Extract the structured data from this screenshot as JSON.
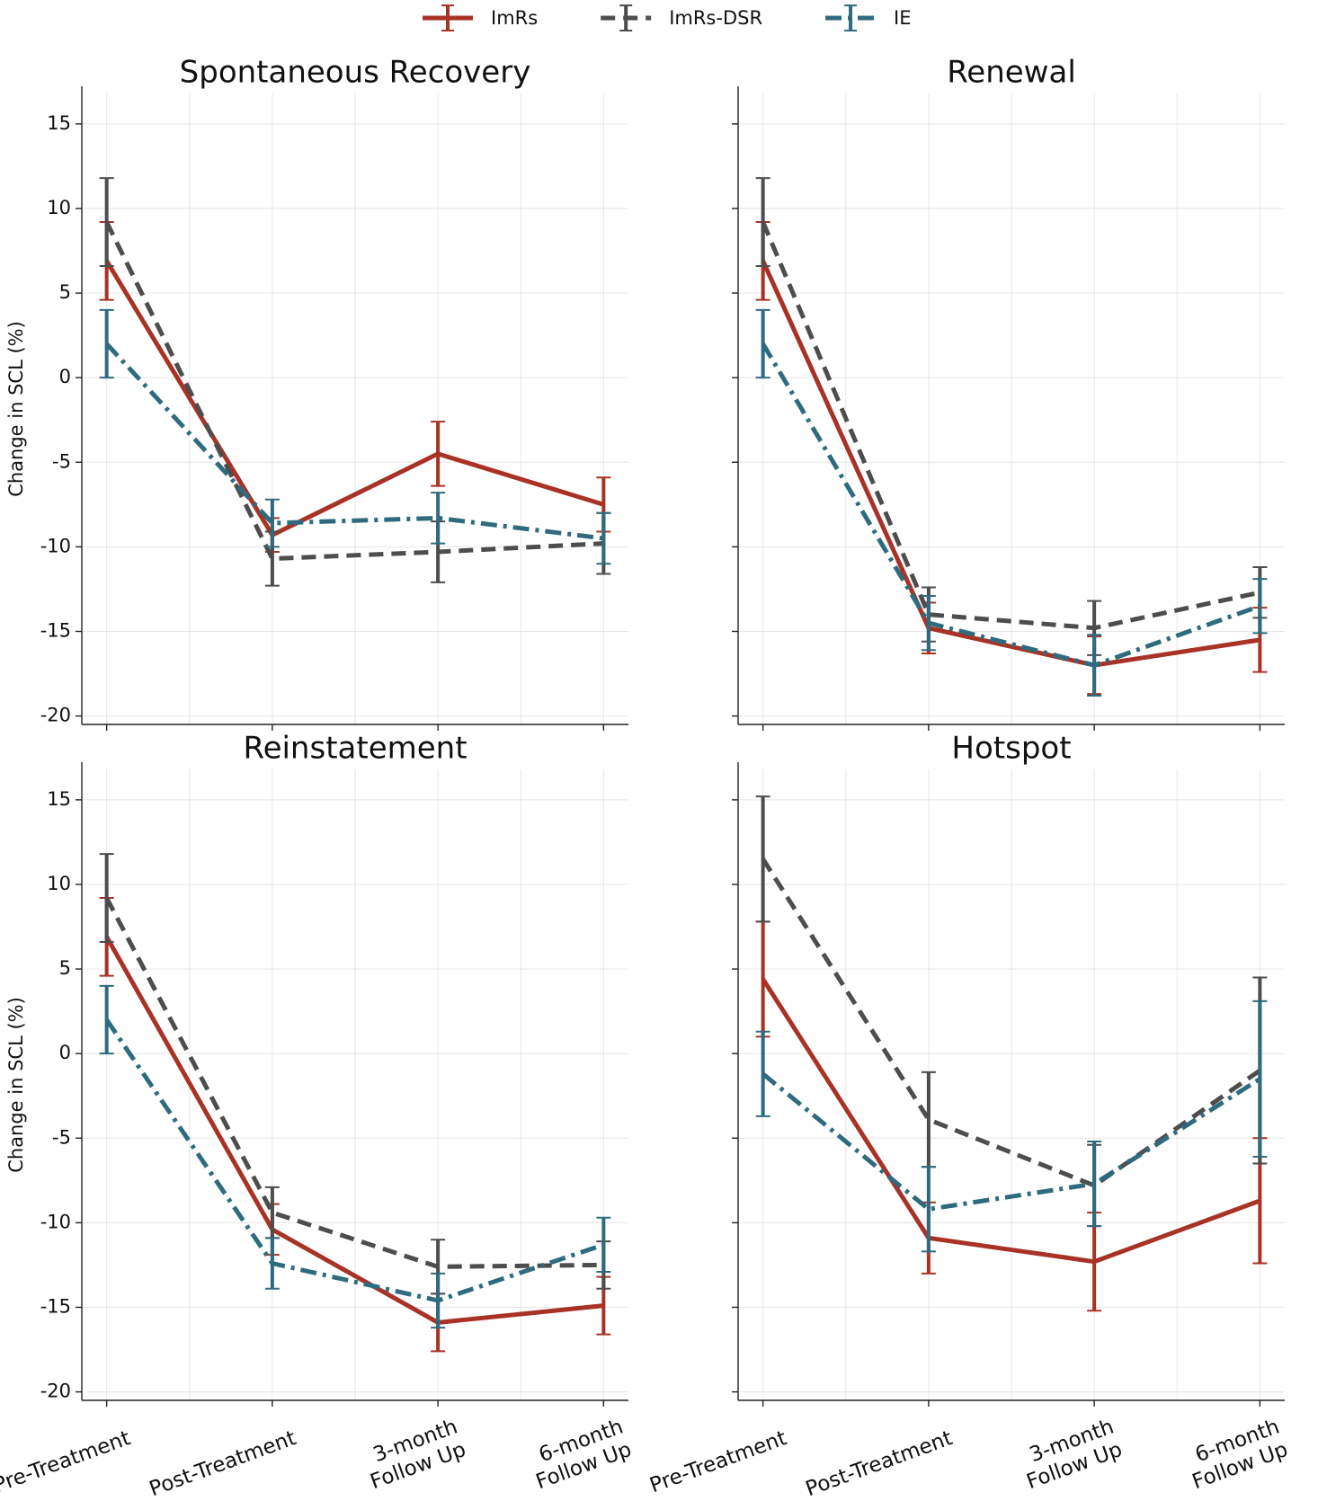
{
  "chart_data": [
    {
      "type": "line",
      "title": "Spontaneous Recovery",
      "ylabel": "Change in SCL (%)",
      "categories": [
        null,
        null,
        null,
        null
      ],
      "ylim": [
        -20.5,
        16.8
      ],
      "yticks": [
        -20,
        -15,
        -10,
        -5,
        0,
        5,
        10,
        15
      ],
      "ytick_labels": true,
      "grid": true,
      "series": [
        {
          "name": "ImRs",
          "color": "#a93226",
          "linestyle": "solid",
          "values": [
            6.9,
            -9.3,
            -4.5,
            -7.5
          ],
          "errors": [
            2.3,
            1.0,
            1.9,
            1.6
          ]
        },
        {
          "name": "ImRs-DSR",
          "color": "#4d4d4d",
          "linestyle": "dashed",
          "values": [
            9.2,
            -10.7,
            -10.3,
            -9.8
          ],
          "errors": [
            2.6,
            1.6,
            1.8,
            1.8
          ]
        },
        {
          "name": "IE",
          "color": "#2e6b7e",
          "linestyle": "dashdot",
          "values": [
            2.0,
            -8.6,
            -8.3,
            -9.5
          ],
          "errors": [
            2.0,
            1.4,
            1.5,
            1.5
          ]
        }
      ]
    },
    {
      "type": "line",
      "title": "Renewal",
      "categories": [
        null,
        null,
        null,
        null
      ],
      "ylim": [
        -20.5,
        16.8
      ],
      "yticks": [
        -20,
        -15,
        -10,
        -5,
        0,
        5,
        10,
        15
      ],
      "ytick_labels": false,
      "grid": true,
      "series": [
        {
          "color": "#a93226",
          "linestyle": "solid",
          "values": [
            6.9,
            -14.8,
            -17.0,
            -15.5
          ],
          "errors": [
            2.3,
            1.5,
            1.7,
            1.9
          ]
        },
        {
          "color": "#4d4d4d",
          "linestyle": "dashed",
          "values": [
            9.2,
            -14.0,
            -14.8,
            -12.7
          ],
          "errors": [
            2.6,
            1.6,
            1.6,
            1.5
          ]
        },
        {
          "color": "#2e6b7e",
          "linestyle": "dashdot",
          "values": [
            2.0,
            -14.5,
            -17.0,
            -13.5
          ],
          "errors": [
            2.0,
            1.6,
            1.8,
            1.6
          ]
        }
      ]
    },
    {
      "type": "line",
      "title": "Reinstatement",
      "ylabel": "Change in SCL (%)",
      "categories": [
        "Pre-Treatment",
        "Post-Treatment",
        "3-month\nFollow Up",
        "6-month\nFollow Up"
      ],
      "ylim": [
        -20.5,
        16.8
      ],
      "yticks": [
        -20,
        -15,
        -10,
        -5,
        0,
        5,
        10,
        15
      ],
      "ytick_labels": true,
      "grid": true,
      "series": [
        {
          "color": "#a93226",
          "linestyle": "solid",
          "values": [
            6.9,
            -10.4,
            -15.9,
            -14.9
          ],
          "errors": [
            2.3,
            1.5,
            1.7,
            1.7
          ]
        },
        {
          "color": "#4d4d4d",
          "linestyle": "dashed",
          "values": [
            9.2,
            -9.4,
            -12.6,
            -12.5
          ],
          "errors": [
            2.6,
            1.5,
            1.6,
            1.4
          ]
        },
        {
          "color": "#2e6b7e",
          "linestyle": "dashdot",
          "values": [
            2.0,
            -12.4,
            -14.6,
            -11.3
          ],
          "errors": [
            2.0,
            1.5,
            1.6,
            1.6
          ]
        }
      ]
    },
    {
      "type": "line",
      "title": "Hotspot",
      "categories": [
        "Pre-Treatment",
        "Post-Treatment",
        "3-month\nFollow Up",
        "6-month\nFollow Up"
      ],
      "ylim": [
        -20.5,
        16.8
      ],
      "yticks": [
        -20,
        -15,
        -10,
        -5,
        0,
        5,
        10,
        15
      ],
      "ytick_labels": false,
      "grid": true,
      "series": [
        {
          "color": "#a93226",
          "linestyle": "solid",
          "values": [
            4.4,
            -10.9,
            -12.3,
            -8.7
          ],
          "errors": [
            3.4,
            2.1,
            2.9,
            3.7
          ]
        },
        {
          "color": "#4d4d4d",
          "linestyle": "dashed",
          "values": [
            11.5,
            -3.9,
            -7.8,
            -1.0
          ],
          "errors": [
            3.7,
            2.8,
            2.4,
            5.5
          ]
        },
        {
          "color": "#2e6b7e",
          "linestyle": "dashdot",
          "values": [
            -1.2,
            -9.2,
            -7.7,
            -1.5
          ],
          "errors": [
            2.5,
            2.5,
            2.5,
            4.6
          ]
        }
      ]
    }
  ]
}
